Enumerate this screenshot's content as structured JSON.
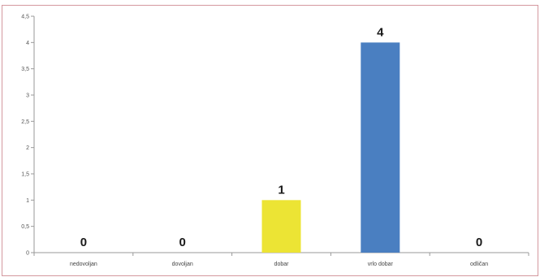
{
  "chart_data": {
    "type": "bar",
    "categories": [
      "nedovoljan",
      "dovoljan",
      "dobar",
      "vrlo dobar",
      "odličan"
    ],
    "values": [
      0,
      0,
      1,
      4,
      0
    ],
    "data_labels": [
      "0",
      "0",
      "1",
      "4",
      "0"
    ],
    "bar_colors": [
      "#4a7fc1",
      "#4a7fc1",
      "#ece434",
      "#4a7fc1",
      "#4a7fc1"
    ],
    "ylim": [
      0,
      4.5
    ],
    "yticks": [
      "0",
      "0,5",
      "1",
      "1,5",
      "2",
      "2,5",
      "3",
      "3,5",
      "4",
      "4,5"
    ],
    "grid": false,
    "legend": false
  },
  "colors": {
    "frame_border": "#d4989f",
    "axis": "#999999"
  }
}
